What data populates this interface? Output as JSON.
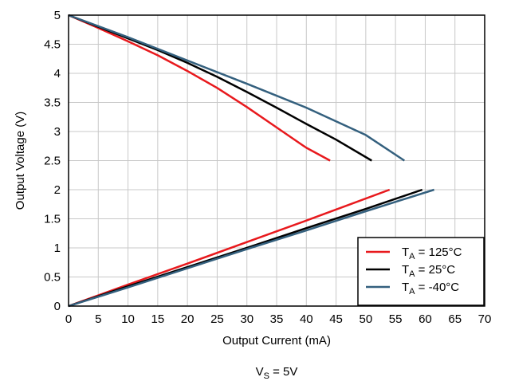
{
  "chart_data": {
    "type": "line",
    "xlabel": "Output Current (mA)",
    "ylabel": "Output Voltage (V)",
    "caption": {
      "main": "V",
      "sub": "S",
      "rest": " = 5V"
    },
    "xlim": [
      0,
      70
    ],
    "ylim": [
      0,
      5
    ],
    "x_ticks": [
      "0",
      "5",
      "10",
      "15",
      "20",
      "25",
      "30",
      "35",
      "40",
      "45",
      "50",
      "55",
      "60",
      "65",
      "70"
    ],
    "y_ticks": [
      "0",
      "0.5",
      "1",
      "1.5",
      "2",
      "2.5",
      "3",
      "3.5",
      "4",
      "4.5",
      "5"
    ],
    "grid": true,
    "legend_placement": "bottom-right",
    "legend": [
      {
        "prefix": "T",
        "sub": "A",
        "suffix": " = 125°C",
        "color": "#e8191d"
      },
      {
        "prefix": "T",
        "sub": "A",
        "suffix": " = 25°C",
        "color": "#000000"
      },
      {
        "prefix": "T",
        "sub": "A",
        "suffix": " = -40°C",
        "color": "#34607e"
      }
    ],
    "series": [
      {
        "legend_index": 0,
        "part": "sourcing",
        "color": "#e8191d",
        "x": [
          0,
          5,
          10,
          15,
          20,
          25,
          30,
          35,
          40,
          44
        ],
        "y": [
          5,
          4.78,
          4.55,
          4.31,
          4.04,
          3.75,
          3.42,
          3.07,
          2.72,
          2.5
        ]
      },
      {
        "legend_index": 0,
        "part": "sinking",
        "color": "#e8191d",
        "x": [
          0,
          10,
          20,
          30,
          40,
          54
        ],
        "y": [
          0,
          0.37,
          0.73,
          1.1,
          1.47,
          2.0
        ]
      },
      {
        "legend_index": 1,
        "part": "sourcing",
        "color": "#000000",
        "x": [
          0,
          5,
          10,
          15,
          20,
          25,
          30,
          35,
          40,
          45,
          51
        ],
        "y": [
          5,
          4.8,
          4.6,
          4.4,
          4.18,
          3.94,
          3.68,
          3.41,
          3.13,
          2.86,
          2.5
        ]
      },
      {
        "legend_index": 1,
        "part": "sinking",
        "color": "#000000",
        "x": [
          0,
          10,
          20,
          30,
          40,
          50,
          59.5
        ],
        "y": [
          0,
          0.34,
          0.67,
          1.0,
          1.34,
          1.67,
          2.0
        ]
      },
      {
        "legend_index": 2,
        "part": "sourcing",
        "color": "#34607e",
        "x": [
          0,
          10,
          20,
          30,
          40,
          50,
          56.5
        ],
        "y": [
          5,
          4.62,
          4.22,
          3.82,
          3.41,
          2.94,
          2.5
        ]
      },
      {
        "legend_index": 2,
        "part": "sinking",
        "color": "#34607e",
        "x": [
          0,
          10,
          20,
          30,
          40,
          50,
          61.5
        ],
        "y": [
          0,
          0.32,
          0.65,
          0.98,
          1.3,
          1.63,
          2.0
        ]
      }
    ]
  }
}
